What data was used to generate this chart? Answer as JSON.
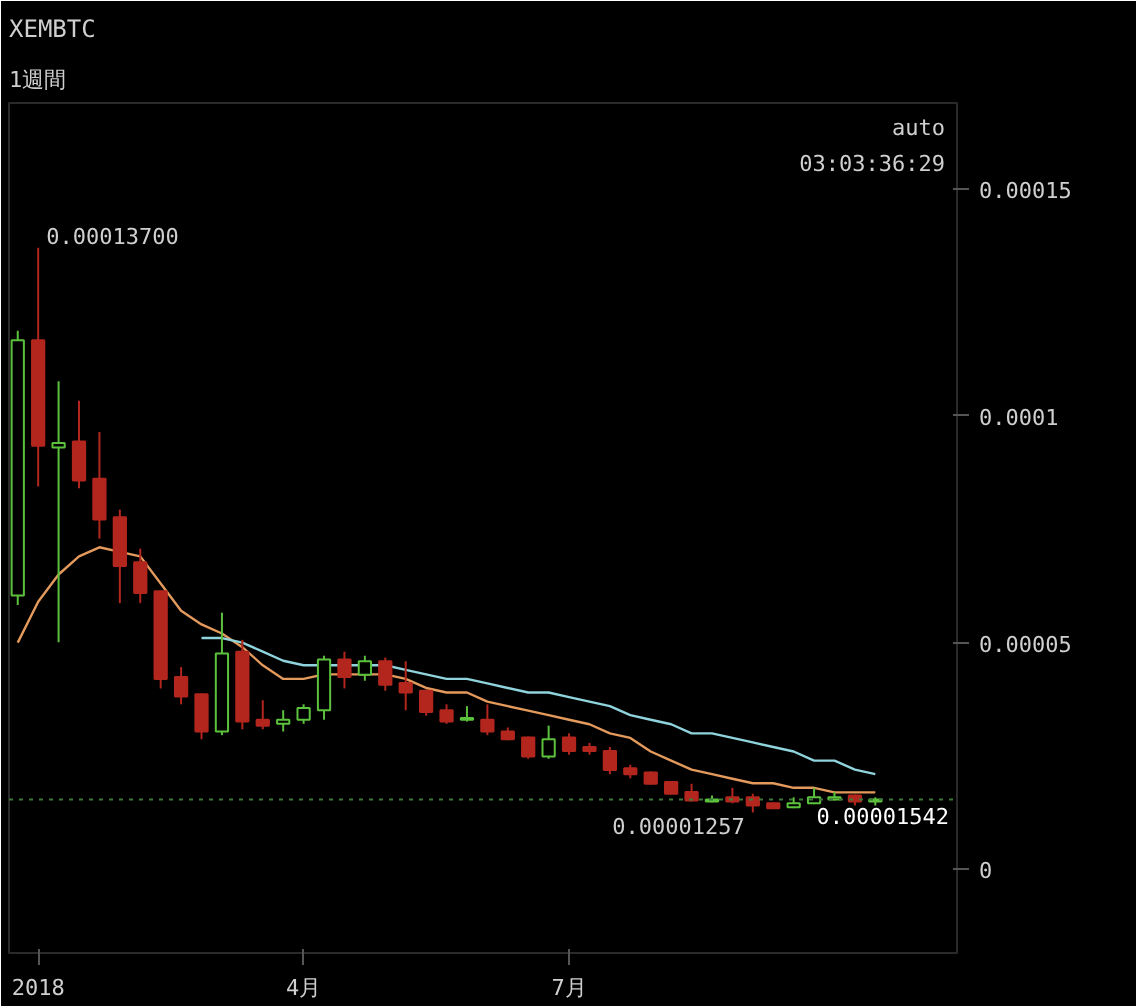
{
  "chart_data": {
    "type": "candlestick",
    "title": "XEMBTC",
    "subtitle": "1週間",
    "x": [
      "2017-12-25",
      "2018-01-01",
      "2018-01-08",
      "2018-01-15",
      "2018-01-22",
      "2018-01-29",
      "2018-02-05",
      "2018-02-12",
      "2018-02-19",
      "2018-02-26",
      "2018-03-05",
      "2018-03-12",
      "2018-03-19",
      "2018-03-26",
      "2018-04-02",
      "2018-04-09",
      "2018-04-16",
      "2018-04-23",
      "2018-04-30",
      "2018-05-07",
      "2018-05-14",
      "2018-05-21",
      "2018-05-28",
      "2018-06-04",
      "2018-06-11",
      "2018-06-18",
      "2018-06-25",
      "2018-07-02",
      "2018-07-09",
      "2018-07-16",
      "2018-07-23",
      "2018-07-30",
      "2018-08-06",
      "2018-08-13",
      "2018-08-20",
      "2018-08-27",
      "2018-09-03",
      "2018-09-10",
      "2018-09-17",
      "2018-09-24",
      "2018-10-01",
      "2018-10-08",
      "2018-10-15"
    ],
    "ohlc": [
      [
        6.04e-05,
        0.0001187,
        5.83e-05,
        0.0001166
      ],
      [
        0.0001166,
        0.000137,
        8.44e-05,
        9.34e-05
      ],
      [
        9.3e-05,
        0.0001076,
        5.01e-05,
        9.4e-05
      ],
      [
        9.43e-05,
        0.0001033,
        8.4e-05,
        8.57e-05
      ],
      [
        8.61e-05,
        9.64e-05,
        7.29e-05,
        7.71e-05
      ],
      [
        7.76e-05,
        7.93e-05,
        5.87e-05,
        6.69e-05
      ],
      [
        6.77e-05,
        7.07e-05,
        5.87e-05,
        6.09e-05
      ],
      [
        6.13e-05,
        6.15e-05,
        3.99e-05,
        4.2e-05
      ],
      [
        4.24e-05,
        4.46e-05,
        3.64e-05,
        3.81e-05
      ],
      [
        3.86e-05,
        3.88e-05,
        2.87e-05,
        3.04e-05
      ],
      [
        3.04e-05,
        5.66e-05,
        2.96e-05,
        4.76e-05
      ],
      [
        4.8e-05,
        5.06e-05,
        3.09e-05,
        3.26e-05
      ],
      [
        3.3e-05,
        3.73e-05,
        3.09e-05,
        3.17e-05
      ],
      [
        3.21e-05,
        3.51e-05,
        3.04e-05,
        3.3e-05
      ],
      [
        3.3e-05,
        3.64e-05,
        3.21e-05,
        3.56e-05
      ],
      [
        3.51e-05,
        4.71e-05,
        3.3e-05,
        4.63e-05
      ],
      [
        4.63e-05,
        4.8e-05,
        3.99e-05,
        4.24e-05
      ],
      [
        4.29e-05,
        4.71e-05,
        4.16e-05,
        4.59e-05
      ],
      [
        4.59e-05,
        4.67e-05,
        3.94e-05,
        4.07e-05
      ],
      [
        4.11e-05,
        4.59e-05,
        3.51e-05,
        3.9e-05
      ],
      [
        3.94e-05,
        3.96e-05,
        3.39e-05,
        3.47e-05
      ],
      [
        3.51e-05,
        3.64e-05,
        3.21e-05,
        3.26e-05
      ],
      [
        3.3e-05,
        3.6e-05,
        3.26e-05,
        3.34e-05
      ],
      [
        3.3e-05,
        3.64e-05,
        2.96e-05,
        3.04e-05
      ],
      [
        3.04e-05,
        3.13e-05,
        2.85e-05,
        2.87e-05
      ],
      [
        2.91e-05,
        2.93e-05,
        2.44e-05,
        2.49e-05
      ],
      [
        2.49e-05,
        3.17e-05,
        2.44e-05,
        2.87e-05
      ],
      [
        2.91e-05,
        3e-05,
        2.53e-05,
        2.61e-05
      ],
      [
        2.7e-05,
        2.79e-05,
        2.53e-05,
        2.61e-05
      ],
      [
        2.61e-05,
        2.7e-05,
        2.1e-05,
        2.19e-05
      ],
      [
        2.23e-05,
        2.31e-05,
        2.01e-05,
        2.1e-05
      ],
      [
        2.14e-05,
        2.16e-05,
        1.87e-05,
        1.89e-05
      ],
      [
        1.93e-05,
        1.95e-05,
        1.65e-05,
        1.67e-05
      ],
      [
        1.71e-05,
        1.89e-05,
        1.5e-05,
        1.52e-05
      ],
      [
        1.5e-05,
        1.63e-05,
        1.48e-05,
        1.54e-05
      ],
      [
        1.59e-05,
        1.8e-05,
        1.46e-05,
        1.5e-05
      ],
      [
        1.59e-05,
        1.67e-05,
        1.257e-05,
        1.41e-05
      ],
      [
        1.46e-05,
        1.48e-05,
        1.33e-05,
        1.35e-05
      ],
      [
        1.37e-05,
        1.59e-05,
        1.35e-05,
        1.46e-05
      ],
      [
        1.46e-05,
        1.8e-05,
        1.44e-05,
        1.59e-05
      ],
      [
        1.54e-05,
        1.71e-05,
        1.52e-05,
        1.59e-05
      ],
      [
        1.63e-05,
        1.65e-05,
        1.41e-05,
        1.5e-05
      ],
      [
        1.5e-05,
        1.59e-05,
        1.41e-05,
        1.542e-05
      ]
    ],
    "colors": [
      "#5cc13c",
      "#b3261e",
      "#5cc13c",
      "#b3261e",
      "#b3261e",
      "#b3261e",
      "#b3261e",
      "#b3261e",
      "#b3261e",
      "#b3261e",
      "#5cc13c",
      "#b3261e",
      "#b3261e",
      "#5cc13c",
      "#5cc13c",
      "#5cc13c",
      "#b3261e",
      "#5cc13c",
      "#b3261e",
      "#b3261e",
      "#b3261e",
      "#b3261e",
      "#5cc13c",
      "#b3261e",
      "#b3261e",
      "#b3261e",
      "#5cc13c",
      "#b3261e",
      "#b3261e",
      "#b3261e",
      "#b3261e",
      "#b3261e",
      "#b3261e",
      "#b3261e",
      "#5cc13c",
      "#b3261e",
      "#b3261e",
      "#b3261e",
      "#5cc13c",
      "#5cc13c",
      "#5cc13c",
      "#b3261e",
      "#5cc13c"
    ],
    "series": [
      {
        "type": "line",
        "color": "#e39a5c",
        "x": [
          "2017-12-25",
          "2018-01-01",
          "2018-01-08",
          "2018-01-15",
          "2018-01-22",
          "2018-01-29",
          "2018-02-05",
          "2018-02-12",
          "2018-02-19",
          "2018-02-26",
          "2018-03-05",
          "2018-03-12",
          "2018-03-19",
          "2018-03-26",
          "2018-04-02",
          "2018-04-09",
          "2018-04-16",
          "2018-04-23",
          "2018-04-30",
          "2018-05-07",
          "2018-05-14",
          "2018-05-21",
          "2018-05-28",
          "2018-06-04",
          "2018-06-11",
          "2018-06-18",
          "2018-06-25",
          "2018-07-02",
          "2018-07-09",
          "2018-07-16",
          "2018-07-23",
          "2018-07-30",
          "2018-08-06",
          "2018-08-13",
          "2018-08-20",
          "2018-08-27",
          "2018-09-03",
          "2018-09-10",
          "2018-09-17",
          "2018-09-24",
          "2018-10-01",
          "2018-10-08",
          "2018-10-15"
        ],
        "values": [
          5e-05,
          5.9e-05,
          6.5e-05,
          6.9e-05,
          7.1e-05,
          7e-05,
          6.9e-05,
          6.3e-05,
          5.7e-05,
          5.4e-05,
          5.2e-05,
          4.9e-05,
          4.5e-05,
          4.2e-05,
          4.2e-05,
          4.3e-05,
          4.3e-05,
          4.3e-05,
          4.3e-05,
          4.2e-05,
          4e-05,
          3.9e-05,
          3.9e-05,
          3.7e-05,
          3.6e-05,
          3.5e-05,
          3.4e-05,
          3.3e-05,
          3.2e-05,
          3e-05,
          2.9e-05,
          2.6e-05,
          2.4e-05,
          2.2e-05,
          2.1e-05,
          2e-05,
          1.9e-05,
          1.9e-05,
          1.8e-05,
          1.8e-05,
          1.7e-05,
          1.7e-05,
          1.7e-05
        ]
      },
      {
        "type": "line",
        "color": "#8fd3dc",
        "x": [
          "2018-02-26",
          "2018-03-05",
          "2018-03-12",
          "2018-03-19",
          "2018-03-26",
          "2018-04-02",
          "2018-04-09",
          "2018-04-16",
          "2018-04-23",
          "2018-04-30",
          "2018-05-07",
          "2018-05-14",
          "2018-05-21",
          "2018-05-28",
          "2018-06-04",
          "2018-06-11",
          "2018-06-18",
          "2018-06-25",
          "2018-07-02",
          "2018-07-09",
          "2018-07-16",
          "2018-07-23",
          "2018-07-30",
          "2018-08-06",
          "2018-08-13",
          "2018-08-20",
          "2018-08-27",
          "2018-09-03",
          "2018-09-10",
          "2018-09-17",
          "2018-09-24",
          "2018-10-01",
          "2018-10-08",
          "2018-10-15"
        ],
        "values": [
          5.1e-05,
          5.1e-05,
          5e-05,
          4.8e-05,
          4.6e-05,
          4.5e-05,
          4.5e-05,
          4.5e-05,
          4.5e-05,
          4.5e-05,
          4.4e-05,
          4.3e-05,
          4.2e-05,
          4.2e-05,
          4.1e-05,
          4e-05,
          3.9e-05,
          3.9e-05,
          3.8e-05,
          3.7e-05,
          3.6e-05,
          3.4e-05,
          3.3e-05,
          3.2e-05,
          3e-05,
          3e-05,
          2.9e-05,
          2.8e-05,
          2.7e-05,
          2.6e-05,
          2.4e-05,
          2.4e-05,
          2.2e-05,
          2.1e-05
        ]
      }
    ],
    "xlim": [
      "2017-12-22",
      "2018-11-12"
    ],
    "xticks": [
      {
        "value": "2018-01-01",
        "label": "2018"
      },
      {
        "value": "2018-04-02",
        "label": "4月"
      },
      {
        "value": "2018-07-02",
        "label": "7月"
      }
    ],
    "ylim": [
      -1.84e-05,
      0.0001689
    ],
    "yticks": [
      {
        "value": 0,
        "label": "0"
      },
      {
        "value": 5e-05,
        "label": "0.00005"
      },
      {
        "value": 0.0001,
        "label": "0.0001"
      },
      {
        "value": 0.00015,
        "label": "0.00015"
      }
    ],
    "ref_lines": [
      {
        "axis": "y",
        "value": 1.542e-05,
        "label": "0.00001542",
        "color": "#3d7a3a",
        "line_style": "dotted"
      }
    ],
    "annotations": [
      {
        "text": "0.00013700",
        "x": "2018-01-01",
        "y": 0.000137
      },
      {
        "text": "0.00001257",
        "x": "2018-09-03",
        "y": 1.257e-05
      },
      "auto",
      "03:03:36:29"
    ],
    "grid": false
  }
}
